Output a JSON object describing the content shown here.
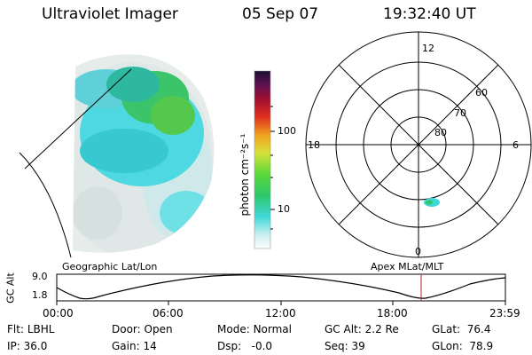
{
  "header": {
    "instrument": "Ultraviolet Imager",
    "date": "05 Sep 07",
    "time": "19:32:40 UT"
  },
  "colorbar": {
    "label": "photon cm⁻²s⁻¹",
    "ticks": [
      "100",
      "10"
    ]
  },
  "polar_plot": {
    "mlt_labels": {
      "top": "12",
      "left": "18",
      "right": "6",
      "bottom": "0"
    },
    "lat_labels": [
      "60",
      "70",
      "80"
    ]
  },
  "map_labels": {
    "geo": "Geographic Lat/Lon",
    "apex": "Apex MLat/MLT"
  },
  "altitude_plot": {
    "ylabel": "GC Alt",
    "y_ticks": [
      "9.0",
      "1.8"
    ],
    "x_ticks": [
      "00:00",
      "06:00",
      "12:00",
      "18:00",
      "23:59"
    ],
    "cursor_color": "#b02020"
  },
  "info": {
    "row1": [
      {
        "label": "Flt:",
        "value": "LBHL"
      },
      {
        "label": "Door:",
        "value": "Open"
      },
      {
        "label": "Mode:",
        "value": "Normal"
      },
      {
        "label": "GC Alt:",
        "value": "2.2 Re"
      },
      {
        "label": "GLat:",
        "value": "76.4"
      }
    ],
    "row2": [
      {
        "label": "IP:",
        "value": "36.0"
      },
      {
        "label": "Gain:",
        "value": "14"
      },
      {
        "label": "Dsp:",
        "value": "-0.0"
      },
      {
        "label": "Seq:",
        "value": "39"
      },
      {
        "label": "GLon:",
        "value": "78.9"
      }
    ]
  }
}
